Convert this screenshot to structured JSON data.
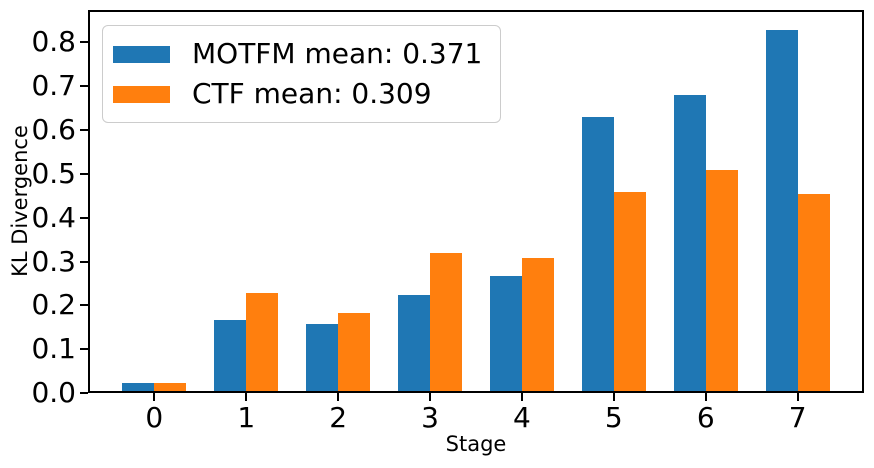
{
  "chart_data": {
    "type": "bar",
    "title": "",
    "xlabel": "Stage",
    "ylabel": "KL Divergence",
    "categories": [
      "0",
      "1",
      "2",
      "3",
      "4",
      "5",
      "6",
      "7"
    ],
    "series": [
      {
        "name": "MOTFM",
        "legend_label": "MOTFM mean: 0.371",
        "mean": 0.371,
        "color": "#1f77b4",
        "values": [
          0.018,
          0.163,
          0.154,
          0.222,
          0.265,
          0.632,
          0.682,
          0.832
        ]
      },
      {
        "name": "CTF",
        "legend_label": "CTF mean: 0.309",
        "mean": 0.309,
        "color": "#ff7f0e",
        "values": [
          0.018,
          0.225,
          0.18,
          0.318,
          0.307,
          0.46,
          0.51,
          0.455
        ]
      }
    ],
    "yticks": [
      "0.0",
      "0.1",
      "0.2",
      "0.3",
      "0.4",
      "0.5",
      "0.6",
      "0.7",
      "0.8"
    ],
    "ylim": [
      0,
      0.874
    ],
    "grid": false,
    "legend_position": "upper left",
    "bar_group_width": 0.35,
    "x_range": [
      -0.7,
      7.7
    ]
  }
}
